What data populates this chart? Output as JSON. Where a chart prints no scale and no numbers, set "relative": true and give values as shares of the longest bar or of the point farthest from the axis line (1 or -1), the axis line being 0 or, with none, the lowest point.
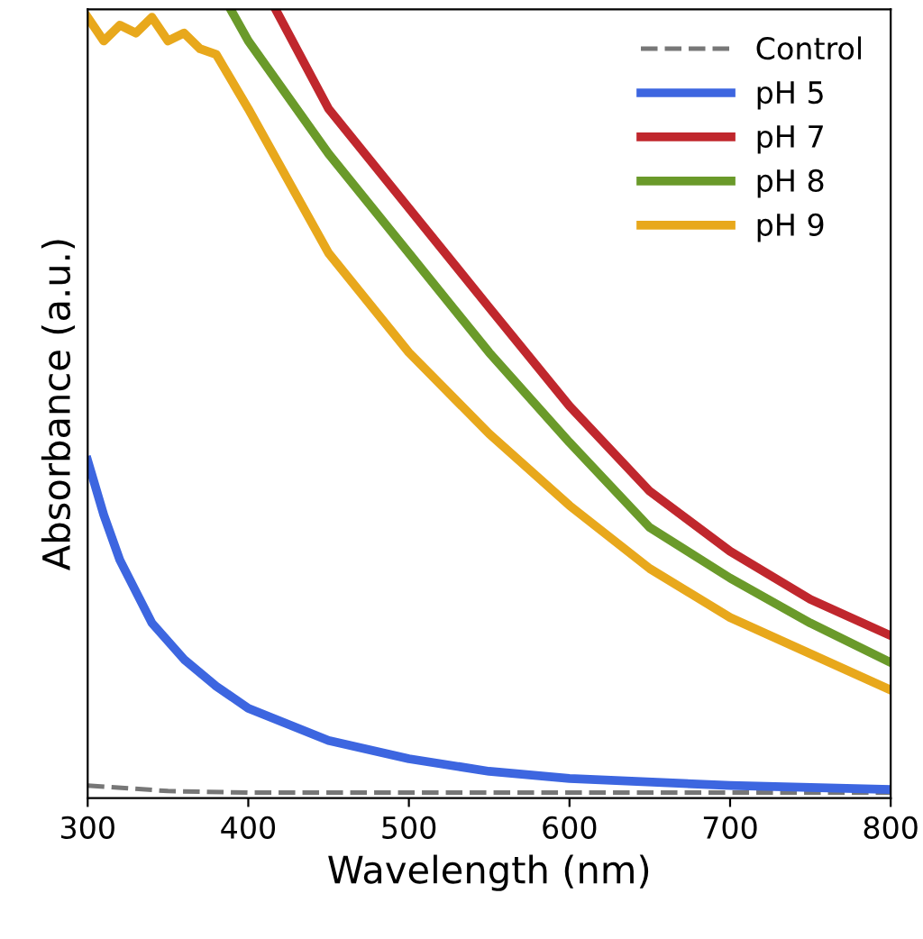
{
  "chart_data": {
    "type": "line",
    "xlabel": "Wavelength (nm)",
    "ylabel": "Absorbance (a.u.)",
    "relative": true,
    "xlim": [
      300,
      800
    ],
    "xticks": [
      300,
      400,
      500,
      600,
      700,
      800
    ],
    "legend": "top right",
    "grid": false,
    "tick_labels": "x",
    "series": [
      {
        "name": "Control",
        "color": "#777777",
        "line_style": "dashed",
        "x": [
          300,
          350,
          400,
          500,
          600,
          700,
          800
        ],
        "values": [
          0.016,
          0.009,
          0.007,
          0.007,
          0.007,
          0.007,
          0.007
        ]
      },
      {
        "name": "pH 5",
        "color": "#3d66e0",
        "x": [
          300,
          310,
          320,
          340,
          360,
          380,
          400,
          450,
          500,
          550,
          600,
          700,
          800
        ],
        "values": [
          0.428,
          0.359,
          0.302,
          0.222,
          0.176,
          0.142,
          0.114,
          0.073,
          0.05,
          0.034,
          0.025,
          0.016,
          0.011
        ]
      },
      {
        "name": "pH 7",
        "color": "#c0272d",
        "x": [
          417,
          450,
          500,
          550,
          600,
          650,
          700,
          750,
          800
        ],
        "values": [
          1.0,
          0.874,
          0.748,
          0.622,
          0.497,
          0.389,
          0.313,
          0.252,
          0.206
        ]
      },
      {
        "name": "pH 8",
        "color": "#6a9a2a",
        "x": [
          389,
          400,
          450,
          500,
          550,
          600,
          650,
          700,
          750,
          800
        ],
        "values": [
          1.0,
          0.96,
          0.817,
          0.691,
          0.565,
          0.451,
          0.343,
          0.279,
          0.222,
          0.172
        ]
      },
      {
        "name": "pH 9",
        "color": "#e8a81c",
        "x": [
          300,
          310,
          320,
          330,
          340,
          350,
          360,
          370,
          380,
          400,
          450,
          500,
          550,
          600,
          650,
          700,
          750,
          800
        ],
        "values": [
          0.99,
          0.96,
          0.98,
          0.97,
          0.99,
          0.96,
          0.97,
          0.95,
          0.943,
          0.874,
          0.691,
          0.565,
          0.462,
          0.371,
          0.291,
          0.229,
          0.183,
          0.137
        ]
      }
    ]
  }
}
